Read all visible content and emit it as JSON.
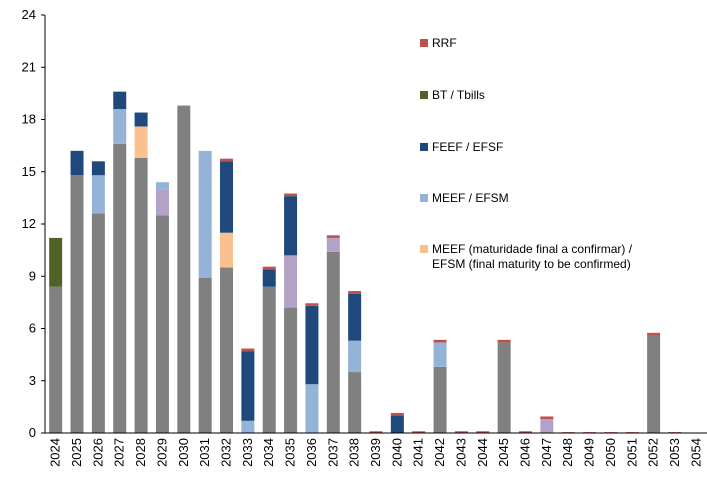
{
  "chart_data": {
    "type": "stacked_bar",
    "categories": [
      "2024",
      "2025",
      "2026",
      "2027",
      "2028",
      "2029",
      "2030",
      "2031",
      "2032",
      "2033",
      "2034",
      "2035",
      "2036",
      "2037",
      "2038",
      "2039",
      "2040",
      "2041",
      "2042",
      "2043",
      "2044",
      "2045",
      "2046",
      "2047",
      "2048",
      "2049",
      "2050",
      "2051",
      "2052",
      "2053",
      "2054"
    ],
    "series": [
      {
        "name": null,
        "color": "#808080",
        "values": [
          8.4,
          14.8,
          12.6,
          16.6,
          15.8,
          12.5,
          18.8,
          8.9,
          9.5,
          0,
          8.4,
          7.2,
          0,
          10.4,
          3.5,
          0,
          0,
          0,
          3.8,
          0,
          0,
          5.2,
          0,
          0,
          0,
          0,
          0,
          0,
          5.6,
          0,
          0
        ]
      },
      {
        "name": "BT / Tbills",
        "color": "#4f6228",
        "values": [
          2.8,
          0,
          0,
          0,
          0,
          0,
          0,
          0,
          0,
          0,
          0,
          0,
          0,
          0,
          0,
          0,
          0,
          0,
          0,
          0,
          0,
          0,
          0,
          0,
          0,
          0,
          0,
          0,
          0,
          0,
          0
        ]
      },
      {
        "name": null,
        "color": "#b3a2c7",
        "values": [
          0,
          0,
          0,
          0,
          0,
          1.5,
          0,
          0,
          0,
          0,
          0,
          3.0,
          0,
          0.8,
          0,
          0,
          0,
          0,
          0,
          0,
          0,
          0,
          0,
          0.8,
          0,
          0,
          0,
          0,
          0,
          0,
          0
        ]
      },
      {
        "name": "MEEF / EFSM",
        "color": "#95b3d7",
        "values": [
          0,
          0,
          2.2,
          2.0,
          0,
          0.4,
          0,
          7.3,
          0,
          0.7,
          0,
          0,
          2.8,
          0,
          1.8,
          0,
          0,
          0,
          1.4,
          0,
          0,
          0,
          0,
          0,
          0,
          0,
          0,
          0,
          0,
          0,
          0
        ]
      },
      {
        "name": "MEEF (maturidade final a confirmar) / EFSM (final maturity to be confirmed)",
        "color": "#fac090",
        "values": [
          0,
          0,
          0,
          0,
          1.8,
          0,
          0,
          0,
          2.0,
          0,
          0,
          0,
          0,
          0,
          0,
          0,
          0,
          0,
          0,
          0,
          0,
          0,
          0,
          0,
          0,
          0,
          0,
          0,
          0,
          0,
          0
        ]
      },
      {
        "name": "FEEF / EFSF",
        "color": "#1f497d",
        "values": [
          0,
          1.4,
          0.8,
          1.0,
          0.8,
          0,
          0,
          0,
          4.1,
          4.0,
          1.0,
          3.4,
          4.5,
          0,
          2.7,
          0,
          1.0,
          0,
          0,
          0,
          0,
          0,
          0,
          0,
          0,
          0,
          0,
          0,
          0,
          0,
          0
        ]
      },
      {
        "name": "RRF",
        "color": "#c0504d",
        "values": [
          0,
          0,
          0,
          0,
          0,
          0,
          0,
          0,
          0.15,
          0.15,
          0.15,
          0.15,
          0.15,
          0.15,
          0.15,
          0.1,
          0.15,
          0.1,
          0.15,
          0.1,
          0.1,
          0.15,
          0.1,
          0.15,
          0.05,
          0.05,
          0.05,
          0.05,
          0.15,
          0.05,
          0
        ]
      }
    ],
    "ylim": [
      0,
      24
    ],
    "yticks": [
      0,
      3,
      6,
      9,
      12,
      15,
      18,
      21,
      24
    ]
  }
}
